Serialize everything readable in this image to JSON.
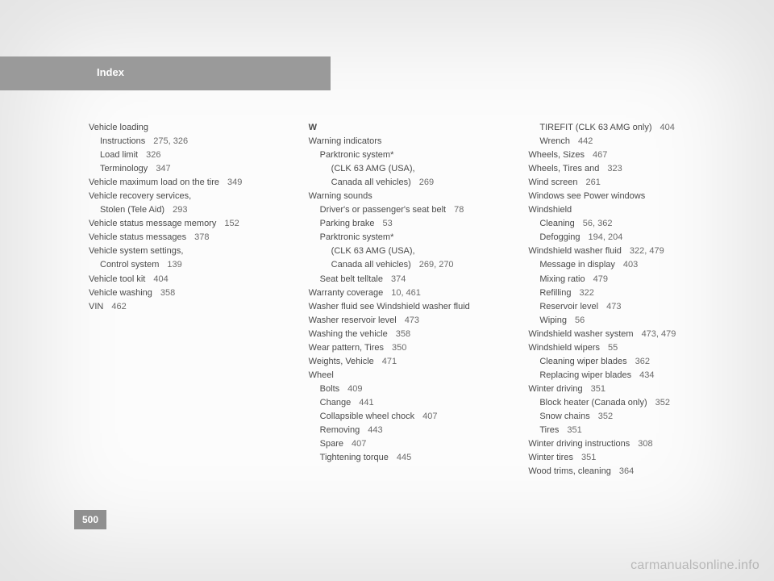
{
  "header": {
    "title": "Index"
  },
  "page_number": "500",
  "watermark": "carmanualsonline.info",
  "colors": {
    "header_bg": "#9a9a9a",
    "header_text": "#ffffff",
    "body_text": "#4a4a4a",
    "page_num_text": "#6a6a6a",
    "pn_box_bg": "#8f8f8f",
    "page_bg": "#fcfcfc"
  },
  "font": {
    "body_size_pt": 8,
    "header_size_pt": 10,
    "line_height": 1.55
  },
  "col1": [
    {
      "t": "Vehicle loading",
      "lvl": 0,
      "p": ""
    },
    {
      "t": "Instructions",
      "lvl": 1,
      "p": "275, 326"
    },
    {
      "t": "Load limit",
      "lvl": 1,
      "p": "326"
    },
    {
      "t": "Terminology",
      "lvl": 1,
      "p": "347"
    },
    {
      "t": "Vehicle maximum load on the tire",
      "lvl": 0,
      "p": "349"
    },
    {
      "t": "Vehicle recovery services,",
      "lvl": 0,
      "p": ""
    },
    {
      "t": "Stolen (Tele Aid)",
      "lvl": 1,
      "p": "293"
    },
    {
      "t": "Vehicle status message memory",
      "lvl": 0,
      "p": "152"
    },
    {
      "t": "Vehicle status messages",
      "lvl": 0,
      "p": "378"
    },
    {
      "t": "Vehicle system settings,",
      "lvl": 0,
      "p": ""
    },
    {
      "t": "Control system",
      "lvl": 1,
      "p": "139"
    },
    {
      "t": "Vehicle tool kit",
      "lvl": 0,
      "p": "404"
    },
    {
      "t": "Vehicle washing",
      "lvl": 0,
      "p": "358"
    },
    {
      "t": "VIN",
      "lvl": 0,
      "p": "462"
    }
  ],
  "w_heading": "W",
  "col2": [
    {
      "t": "Warning indicators",
      "lvl": 0,
      "p": ""
    },
    {
      "t": "Parktronic system*",
      "lvl": 1,
      "p": ""
    },
    {
      "t": "(CLK 63 AMG (USA),",
      "lvl": 2,
      "p": ""
    },
    {
      "t": "Canada all vehicles)",
      "lvl": 2,
      "p": "269"
    },
    {
      "t": "Warning sounds",
      "lvl": 0,
      "p": ""
    },
    {
      "t": "Driver's or passenger's seat belt",
      "lvl": 1,
      "p": "78"
    },
    {
      "t": "Parking brake",
      "lvl": 1,
      "p": "53"
    },
    {
      "t": "Parktronic system*",
      "lvl": 1,
      "p": ""
    },
    {
      "t": "(CLK 63 AMG (USA),",
      "lvl": 2,
      "p": ""
    },
    {
      "t": "Canada all vehicles)",
      "lvl": 2,
      "p": "269, 270"
    },
    {
      "t": "Seat belt telltale",
      "lvl": 1,
      "p": "374"
    },
    {
      "t": "Warranty coverage",
      "lvl": 0,
      "p": "10, 461"
    },
    {
      "t": "Washer fluid see Windshield washer fluid",
      "lvl": 0,
      "p": ""
    },
    {
      "t": "Washer reservoir level",
      "lvl": 0,
      "p": "473"
    },
    {
      "t": "Washing the vehicle",
      "lvl": 0,
      "p": "358"
    },
    {
      "t": "Wear pattern, Tires",
      "lvl": 0,
      "p": "350"
    },
    {
      "t": "Weights, Vehicle",
      "lvl": 0,
      "p": "471"
    },
    {
      "t": "Wheel",
      "lvl": 0,
      "p": ""
    },
    {
      "t": "Bolts",
      "lvl": 1,
      "p": "409"
    },
    {
      "t": "Change",
      "lvl": 1,
      "p": "441"
    },
    {
      "t": "Collapsible wheel chock",
      "lvl": 1,
      "p": "407"
    },
    {
      "t": "Removing",
      "lvl": 1,
      "p": "443"
    },
    {
      "t": "Spare",
      "lvl": 1,
      "p": "407"
    },
    {
      "t": "Tightening torque",
      "lvl": 1,
      "p": "445"
    }
  ],
  "col3": [
    {
      "t": "TIREFIT (CLK 63 AMG only)",
      "lvl": 1,
      "p": "404"
    },
    {
      "t": "Wrench",
      "lvl": 1,
      "p": "442"
    },
    {
      "t": "Wheels, Sizes",
      "lvl": 0,
      "p": "467"
    },
    {
      "t": "Wheels, Tires and",
      "lvl": 0,
      "p": "323"
    },
    {
      "t": "Wind screen",
      "lvl": 0,
      "p": "261"
    },
    {
      "t": "Windows see Power windows",
      "lvl": 0,
      "p": ""
    },
    {
      "t": "Windshield",
      "lvl": 0,
      "p": ""
    },
    {
      "t": "Cleaning",
      "lvl": 1,
      "p": "56, 362"
    },
    {
      "t": "Defogging",
      "lvl": 1,
      "p": "194, 204"
    },
    {
      "t": "Windshield washer fluid",
      "lvl": 0,
      "p": "322, 479"
    },
    {
      "t": "Message in display",
      "lvl": 1,
      "p": "403"
    },
    {
      "t": "Mixing ratio",
      "lvl": 1,
      "p": "479"
    },
    {
      "t": "Refilling",
      "lvl": 1,
      "p": "322"
    },
    {
      "t": "Reservoir level",
      "lvl": 1,
      "p": "473"
    },
    {
      "t": "Wiping",
      "lvl": 1,
      "p": "56"
    },
    {
      "t": "Windshield washer system",
      "lvl": 0,
      "p": "473, 479"
    },
    {
      "t": "Windshield wipers",
      "lvl": 0,
      "p": "55"
    },
    {
      "t": "Cleaning wiper blades",
      "lvl": 1,
      "p": "362"
    },
    {
      "t": "Replacing wiper blades",
      "lvl": 1,
      "p": "434"
    },
    {
      "t": "Winter driving",
      "lvl": 0,
      "p": "351"
    },
    {
      "t": "Block heater (Canada only)",
      "lvl": 1,
      "p": "352"
    },
    {
      "t": "Snow chains",
      "lvl": 1,
      "p": "352"
    },
    {
      "t": "Tires",
      "lvl": 1,
      "p": "351"
    },
    {
      "t": "Winter driving instructions",
      "lvl": 0,
      "p": "308"
    },
    {
      "t": "Winter tires",
      "lvl": 0,
      "p": "351"
    },
    {
      "t": "Wood trims, cleaning",
      "lvl": 0,
      "p": "364"
    }
  ]
}
